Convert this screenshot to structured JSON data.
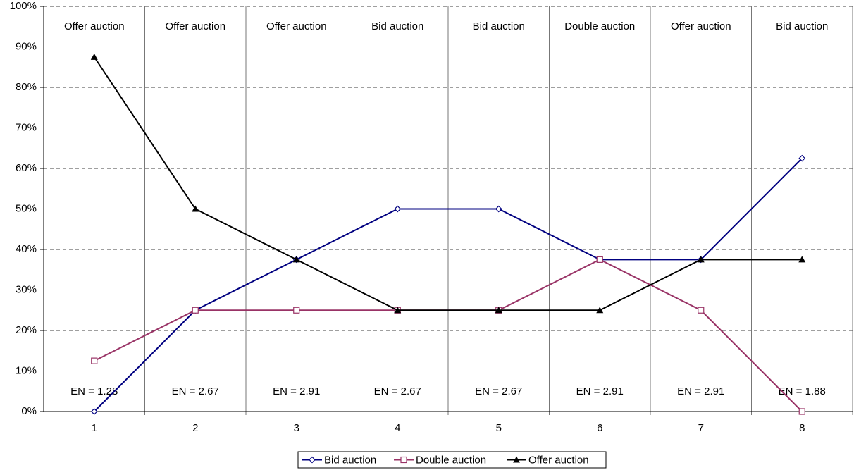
{
  "chart_data": {
    "type": "line",
    "categories": [
      "1",
      "2",
      "3",
      "4",
      "5",
      "6",
      "7",
      "8"
    ],
    "series": [
      {
        "name": "Bid auction",
        "color": "#000080",
        "marker": "diamond",
        "values": [
          0,
          25,
          37.5,
          50,
          50,
          37.5,
          37.5,
          62.5
        ]
      },
      {
        "name": "Double auction",
        "color": "#993366",
        "marker": "square",
        "values": [
          12.5,
          25,
          25,
          25,
          25,
          37.5,
          25,
          0
        ]
      },
      {
        "name": "Offer auction",
        "color": "#000000",
        "marker": "triangle",
        "values": [
          87.5,
          50,
          37.5,
          25,
          25,
          25,
          37.5,
          37.5
        ]
      }
    ],
    "top_labels": [
      "Offer auction",
      "Offer auction",
      "Offer auction",
      "Bid auction",
      "Bid auction",
      "Double auction",
      "Offer auction",
      "Bid auction"
    ],
    "bottom_labels": [
      "EN = 1.28",
      "EN = 2.67",
      "EN = 2.91",
      "EN = 2.67",
      "EN = 2.67",
      "EN = 2.91",
      "EN = 2.91",
      "EN = 1.88"
    ],
    "ylim": [
      0,
      100
    ],
    "yticks": [
      {
        "value": 0,
        "label": "0%"
      },
      {
        "value": 10,
        "label": "10%"
      },
      {
        "value": 20,
        "label": "20%"
      },
      {
        "value": 30,
        "label": "30%"
      },
      {
        "value": 40,
        "label": "40%"
      },
      {
        "value": 50,
        "label": "50%"
      },
      {
        "value": 60,
        "label": "60%"
      },
      {
        "value": 70,
        "label": "70%"
      },
      {
        "value": 80,
        "label": "80%"
      },
      {
        "value": 90,
        "label": "90%"
      },
      {
        "value": 100,
        "label": "100%"
      }
    ],
    "grid": true,
    "legend": "bottom"
  }
}
